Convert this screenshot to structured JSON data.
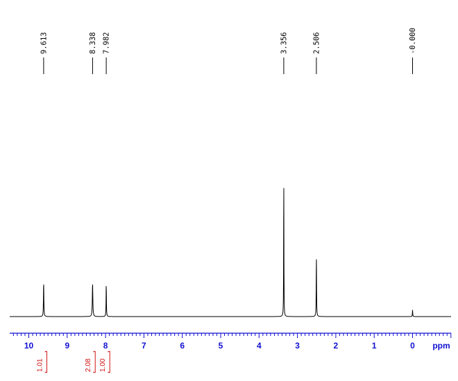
{
  "chart_data": {
    "type": "line",
    "title": "",
    "xlabel": "ppm",
    "ylabel": "",
    "xlim": [
      10.5,
      -0.5
    ],
    "xticks": [
      "10",
      "9",
      "8",
      "7",
      "6",
      "5",
      "4",
      "3",
      "2",
      "1",
      "0"
    ],
    "axis_unit_label": "ppm",
    "axis_color": "#1010d0",
    "spectrum_color": "#000000",
    "integral_color": "#d01010",
    "peaks": [
      {
        "ppm": 9.613,
        "label": "9.613",
        "height": 0.235,
        "width": 0.012
      },
      {
        "ppm": 8.338,
        "label": "8.338",
        "height": 0.225,
        "width": 0.016
      },
      {
        "ppm": 7.982,
        "label": "7.982",
        "height": 0.23,
        "width": 0.01
      },
      {
        "ppm": 3.356,
        "label": "3.356",
        "height": 1.0,
        "width": 0.008
      },
      {
        "ppm": 2.506,
        "label": "2.506",
        "height": 0.42,
        "width": 0.01
      },
      {
        "ppm": 0.0,
        "label": "-0.000",
        "height": 0.045,
        "width": 0.01
      }
    ],
    "integrals": [
      {
        "ppm": 9.62,
        "value": "1.01"
      },
      {
        "ppm": 8.36,
        "value": "2.08"
      },
      {
        "ppm": 7.98,
        "value": "1.00"
      }
    ],
    "legend": "none",
    "grid": false
  }
}
